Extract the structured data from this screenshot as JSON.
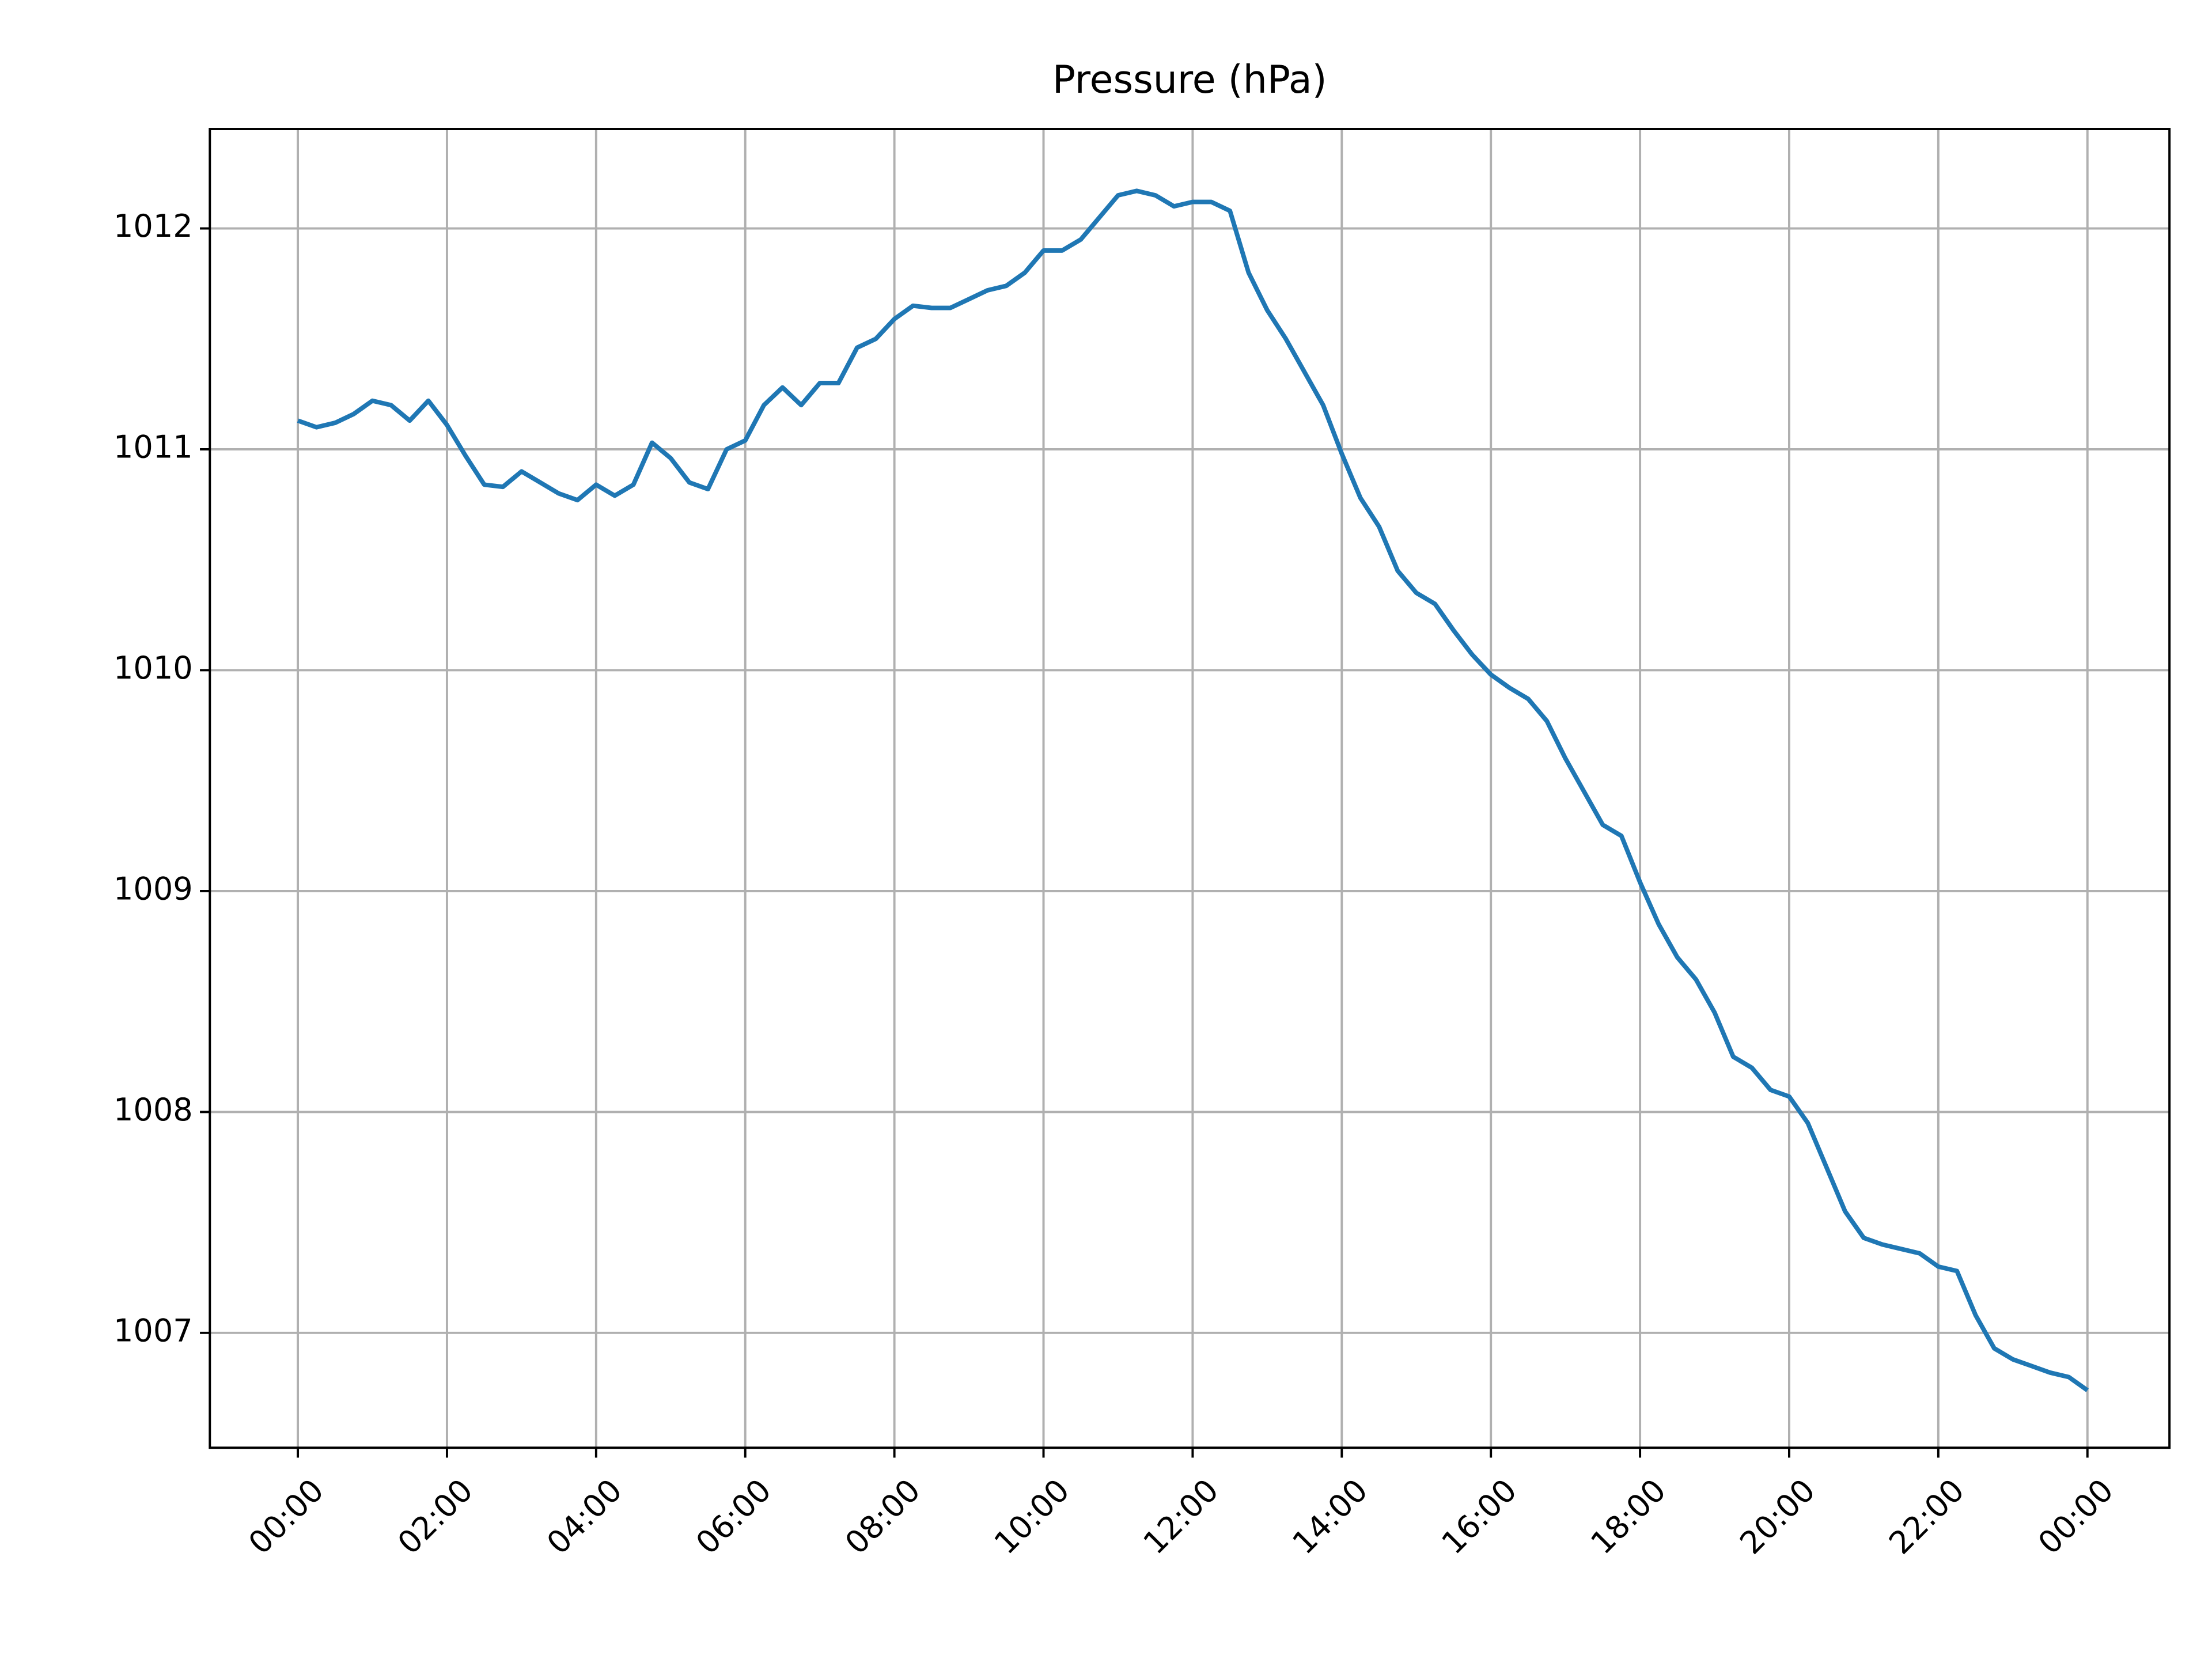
{
  "chart_data": {
    "type": "line",
    "title": "Pressure (hPa)",
    "x": [
      0,
      0.25,
      0.5,
      0.75,
      1,
      1.25,
      1.5,
      1.75,
      2,
      2.25,
      2.5,
      2.75,
      3,
      3.25,
      3.5,
      3.75,
      4,
      4.25,
      4.5,
      4.75,
      5,
      5.25,
      5.5,
      5.75,
      6,
      6.25,
      6.5,
      6.75,
      7,
      7.25,
      7.5,
      7.75,
      8,
      8.25,
      8.5,
      8.75,
      9,
      9.25,
      9.5,
      9.75,
      10,
      10.25,
      10.5,
      10.75,
      11,
      11.25,
      11.5,
      11.75,
      12,
      12.25,
      12.5,
      12.75,
      13,
      13.25,
      13.5,
      13.75,
      14,
      14.25,
      14.5,
      14.75,
      15,
      15.25,
      15.5,
      15.75,
      16,
      16.25,
      16.5,
      16.75,
      17,
      17.25,
      17.5,
      17.75,
      18,
      18.25,
      18.5,
      18.75,
      19,
      19.25,
      19.5,
      19.75,
      20,
      20.25,
      20.5,
      20.75,
      21,
      21.25,
      21.5,
      21.75,
      22,
      22.25,
      22.5,
      22.75,
      23,
      23.25,
      23.5,
      23.75,
      24
    ],
    "series": [
      {
        "name": "Pressure",
        "color": "#1f77b4",
        "values": [
          1011.13,
          1011.1,
          1011.12,
          1011.16,
          1011.22,
          1011.2,
          1011.13,
          1011.22,
          1011.11,
          1010.97,
          1010.84,
          1010.83,
          1010.9,
          1010.85,
          1010.8,
          1010.77,
          1010.84,
          1010.79,
          1010.84,
          1011.03,
          1010.96,
          1010.85,
          1010.82,
          1011.0,
          1011.04,
          1011.2,
          1011.28,
          1011.2,
          1011.3,
          1011.3,
          1011.46,
          1011.5,
          1011.59,
          1011.65,
          1011.64,
          1011.64,
          1011.68,
          1011.72,
          1011.74,
          1011.8,
          1011.9,
          1011.9,
          1011.95,
          1012.05,
          1012.15,
          1012.17,
          1012.15,
          1012.1,
          1012.12,
          1012.12,
          1012.08,
          1011.8,
          1011.63,
          1011.5,
          1011.35,
          1011.2,
          1010.98,
          1010.78,
          1010.65,
          1010.45,
          1010.35,
          1010.3,
          1010.18,
          1010.07,
          1009.98,
          1009.92,
          1009.87,
          1009.77,
          1009.6,
          1009.45,
          1009.3,
          1009.25,
          1009.04,
          1008.85,
          1008.7,
          1008.6,
          1008.45,
          1008.25,
          1008.2,
          1008.1,
          1008.07,
          1007.95,
          1007.75,
          1007.55,
          1007.43,
          1007.4,
          1007.38,
          1007.36,
          1007.3,
          1007.28,
          1007.08,
          1006.93,
          1006.88,
          1006.85,
          1006.82,
          1006.8,
          1006.74
        ]
      }
    ],
    "xlim": [
      -1.18,
      25.1
    ],
    "ylim": [
      1006.48,
      1012.45
    ],
    "xticks": [
      {
        "value": 0,
        "label": "00:00"
      },
      {
        "value": 2,
        "label": "02:00"
      },
      {
        "value": 4,
        "label": "04:00"
      },
      {
        "value": 6,
        "label": "06:00"
      },
      {
        "value": 8,
        "label": "08:00"
      },
      {
        "value": 10,
        "label": "10:00"
      },
      {
        "value": 12,
        "label": "12:00"
      },
      {
        "value": 14,
        "label": "14:00"
      },
      {
        "value": 16,
        "label": "16:00"
      },
      {
        "value": 18,
        "label": "18:00"
      },
      {
        "value": 20,
        "label": "20:00"
      },
      {
        "value": 22,
        "label": "22:00"
      },
      {
        "value": 24,
        "label": "00:00"
      }
    ],
    "yticks": [
      1007,
      1008,
      1009,
      1010,
      1011,
      1012
    ],
    "grid": true
  }
}
